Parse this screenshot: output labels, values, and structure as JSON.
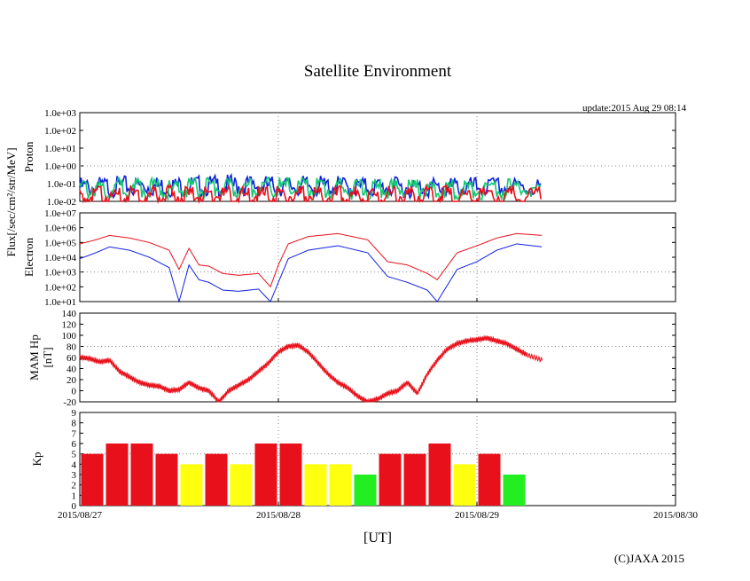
{
  "title": "Satellite Environment",
  "update": "update:2015 Aug 29 08:14",
  "xaxis": {
    "label": "[UT]",
    "ticks": [
      "2015/08/27",
      "2015/08/28",
      "2015/08/29",
      "2015/08/30"
    ]
  },
  "copyright": "(C)JAXA 2015",
  "flux_label": "Flux[/sec/cm²/str/MeV]",
  "colors": {
    "red": "#e8101a",
    "blue": "#1020e0",
    "green": "#12c870",
    "yellow": "#ffff10",
    "kp_green": "#22ee22",
    "grid": "#888888"
  },
  "chart_data": [
    {
      "type": "line",
      "panel": "proton",
      "ylabel": "Proton",
      "yscale": "log",
      "ylim": [
        0.01,
        1000
      ],
      "ytick_labels": [
        "1.0e-02",
        "1.0e-01",
        "1.0e+00",
        "1.0e+01",
        "1.0e+02",
        "1.0e+03"
      ],
      "x_range_days": [
        0,
        3
      ],
      "series": [
        {
          "color": "#1020e0",
          "x": [
            0,
            0.25,
            0.5,
            0.75,
            1.0,
            1.25,
            1.5,
            1.75,
            2.0,
            2.33
          ],
          "values": [
            0.06,
            0.07,
            0.07,
            0.08,
            0.07,
            0.07,
            0.06,
            0.06,
            0.06,
            0.06
          ]
        },
        {
          "color": "#12c870",
          "x": [
            0,
            0.25,
            0.5,
            0.75,
            1.0,
            1.25,
            1.5,
            1.75,
            2.0,
            2.33
          ],
          "values": [
            0.05,
            0.06,
            0.05,
            0.06,
            0.06,
            0.05,
            0.05,
            0.05,
            0.05,
            0.05
          ]
        },
        {
          "color": "#e8101a",
          "x": [
            0,
            0.25,
            0.5,
            0.75,
            1.0,
            1.25,
            1.5,
            1.75,
            2.0,
            2.33
          ],
          "values": [
            0.02,
            0.02,
            0.02,
            0.02,
            0.02,
            0.02,
            0.02,
            0.02,
            0.02,
            0.02
          ]
        }
      ]
    },
    {
      "type": "line",
      "panel": "electron",
      "ylabel": "Electron",
      "yscale": "log",
      "ylim": [
        10,
        10000000
      ],
      "ytick_labels": [
        "1.0e+01",
        "1.0e+02",
        "1.0e+03",
        "1.0e+04",
        "1.0e+05",
        "1.0e+06",
        "1.0e+07"
      ],
      "x_range_days": [
        0,
        3
      ],
      "series": [
        {
          "color": "#e8101a",
          "x": [
            0,
            0.08,
            0.15,
            0.25,
            0.35,
            0.45,
            0.5,
            0.55,
            0.6,
            0.65,
            0.72,
            0.8,
            0.9,
            0.96,
            1.0,
            1.05,
            1.15,
            1.3,
            1.45,
            1.55,
            1.65,
            1.75,
            1.8,
            1.9,
            2.0,
            2.1,
            2.2,
            2.33
          ],
          "values": [
            80000,
            150000,
            300000,
            200000,
            100000,
            30000,
            1500,
            40000,
            3000,
            2500,
            800,
            600,
            800,
            100,
            3000,
            80000,
            250000,
            400000,
            150000,
            5000,
            3000,
            800,
            300,
            20000,
            60000,
            200000,
            400000,
            300000
          ]
        },
        {
          "color": "#1020e0",
          "x": [
            0,
            0.08,
            0.15,
            0.25,
            0.35,
            0.45,
            0.5,
            0.55,
            0.6,
            0.65,
            0.72,
            0.8,
            0.9,
            0.96,
            1.0,
            1.05,
            1.15,
            1.3,
            1.45,
            1.55,
            1.65,
            1.75,
            1.8,
            1.9,
            2.0,
            2.1,
            2.2,
            2.33
          ],
          "values": [
            8000,
            20000,
            50000,
            30000,
            10000,
            2000,
            10,
            3000,
            300,
            200,
            60,
            50,
            70,
            10,
            200,
            8000,
            30000,
            60000,
            20000,
            500,
            200,
            60,
            10,
            1500,
            5000,
            30000,
            80000,
            50000
          ]
        }
      ]
    },
    {
      "type": "line",
      "panel": "mam_hp",
      "ylabel": "MAM Hp [nT]",
      "ylim": [
        -20,
        140
      ],
      "ytick_labels": [
        "-20",
        "0",
        "20",
        "40",
        "60",
        "80",
        "100",
        "120",
        "140"
      ],
      "x_range_days": [
        0,
        3
      ],
      "series": [
        {
          "color": "#e8101a",
          "x": [
            0,
            0.05,
            0.1,
            0.15,
            0.2,
            0.25,
            0.3,
            0.35,
            0.4,
            0.45,
            0.5,
            0.55,
            0.6,
            0.65,
            0.7,
            0.75,
            0.8,
            0.85,
            0.9,
            0.95,
            1.0,
            1.05,
            1.1,
            1.15,
            1.2,
            1.25,
            1.3,
            1.35,
            1.4,
            1.45,
            1.5,
            1.55,
            1.6,
            1.65,
            1.7,
            1.75,
            1.8,
            1.85,
            1.9,
            1.95,
            2.0,
            2.05,
            2.1,
            2.15,
            2.2,
            2.25,
            2.33
          ],
          "values": [
            60,
            58,
            52,
            55,
            35,
            25,
            15,
            10,
            8,
            0,
            2,
            15,
            5,
            0,
            -20,
            0,
            10,
            20,
            35,
            50,
            70,
            80,
            82,
            70,
            50,
            30,
            15,
            5,
            -10,
            -20,
            -15,
            -5,
            0,
            15,
            -5,
            30,
            55,
            75,
            85,
            90,
            92,
            95,
            90,
            85,
            75,
            65,
            55
          ]
        }
      ]
    },
    {
      "type": "bar",
      "panel": "kp",
      "ylabel": "Kp",
      "ylim": [
        0,
        9
      ],
      "ytick_labels": [
        "0",
        "1",
        "2",
        "3",
        "4",
        "5",
        "6",
        "7",
        "8",
        "9"
      ],
      "x_range_days": [
        0,
        3
      ],
      "bar_width_days": 0.125,
      "values": [
        5,
        6,
        6,
        5,
        4,
        5,
        4,
        6,
        6,
        4,
        4,
        3,
        5,
        5,
        6,
        4,
        5,
        3
      ]
    }
  ]
}
